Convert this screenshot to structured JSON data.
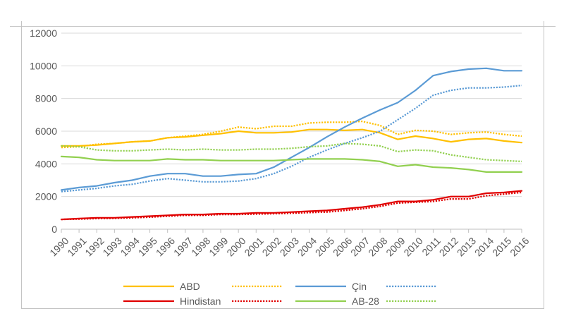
{
  "chart_data": {
    "type": "line",
    "title": "",
    "xlabel": "",
    "ylabel": "",
    "ylim": [
      0,
      12000
    ],
    "yticks": [
      0,
      2000,
      4000,
      6000,
      8000,
      10000,
      12000
    ],
    "ytick_labels": [
      "0",
      "2000",
      "4000",
      "6000",
      "8000",
      "10000",
      "12000"
    ],
    "grid": "horizontal",
    "legend_position": "bottom",
    "x": [
      "1990",
      "1991",
      "1992",
      "1993",
      "1994",
      "1995",
      "1996",
      "1997",
      "1998",
      "1999",
      "2000",
      "2001",
      "2002",
      "2003",
      "2004",
      "2005",
      "2006",
      "2007",
      "2008",
      "2009",
      "2010",
      "2011",
      "2012",
      "2013",
      "2014",
      "2015",
      "2016"
    ],
    "series": [
      {
        "name": "ABD",
        "color": "#FFC000",
        "style": "solid",
        "values": [
          5100,
          5100,
          5150,
          5250,
          5350,
          5400,
          5600,
          5650,
          5750,
          5850,
          6000,
          5900,
          5900,
          5950,
          6100,
          6100,
          6050,
          6100,
          5900,
          5500,
          5700,
          5550,
          5350,
          5500,
          5550,
          5400,
          5300
        ]
      },
      {
        "name": "",
        "color": "#FFC000",
        "style": "dotted",
        "values": [
          5000,
          5050,
          5200,
          5250,
          5350,
          5400,
          5600,
          5700,
          5800,
          6000,
          6250,
          6150,
          6300,
          6300,
          6500,
          6550,
          6550,
          6600,
          6350,
          5800,
          6050,
          6000,
          5800,
          5900,
          5950,
          5800,
          5700
        ]
      },
      {
        "name": "Çin",
        "color": "#5B9BD5",
        "style": "solid",
        "values": [
          2400,
          2550,
          2650,
          2850,
          3000,
          3250,
          3400,
          3400,
          3250,
          3250,
          3350,
          3400,
          3800,
          4400,
          5000,
          5650,
          6250,
          6800,
          7300,
          7750,
          8500,
          9400,
          9650,
          9800,
          9850,
          9700,
          9700
        ]
      },
      {
        "name": "",
        "color": "#5B9BD5",
        "style": "dotted",
        "values": [
          2300,
          2400,
          2500,
          2650,
          2750,
          2950,
          3100,
          3000,
          2900,
          2900,
          2950,
          3100,
          3400,
          3850,
          4400,
          4850,
          5250,
          5600,
          6000,
          6700,
          7400,
          8200,
          8500,
          8650,
          8650,
          8700,
          8800
        ]
      },
      {
        "name": "Hindistan",
        "color": "#E00000",
        "style": "solid",
        "values": [
          600,
          650,
          700,
          700,
          750,
          800,
          850,
          900,
          900,
          950,
          950,
          1000,
          1000,
          1050,
          1100,
          1150,
          1250,
          1350,
          1500,
          1700,
          1700,
          1800,
          2000,
          2000,
          2200,
          2250,
          2350
        ]
      },
      {
        "name": "",
        "color": "#E00000",
        "style": "dotted",
        "values": [
          600,
          620,
          650,
          670,
          700,
          740,
          800,
          850,
          850,
          900,
          900,
          930,
          950,
          980,
          1020,
          1050,
          1150,
          1250,
          1400,
          1600,
          1650,
          1700,
          1850,
          1850,
          2050,
          2150,
          2250
        ]
      },
      {
        "name": "AB-28",
        "color": "#92D050",
        "style": "solid",
        "values": [
          4450,
          4400,
          4250,
          4200,
          4200,
          4200,
          4300,
          4250,
          4250,
          4200,
          4200,
          4200,
          4200,
          4250,
          4300,
          4300,
          4300,
          4250,
          4150,
          3850,
          3950,
          3800,
          3750,
          3650,
          3500,
          3500,
          3500
        ]
      },
      {
        "name": "",
        "color": "#92D050",
        "style": "dotted",
        "values": [
          5100,
          5050,
          4850,
          4800,
          4800,
          4850,
          4900,
          4850,
          4900,
          4850,
          4850,
          4900,
          4900,
          4950,
          5050,
          5100,
          5250,
          5200,
          5100,
          4750,
          4850,
          4800,
          4550,
          4400,
          4250,
          4200,
          4150
        ]
      }
    ],
    "colors": {
      "axis": "#bfbfbf",
      "grid": "#d9d9d9",
      "text": "#595959"
    }
  }
}
